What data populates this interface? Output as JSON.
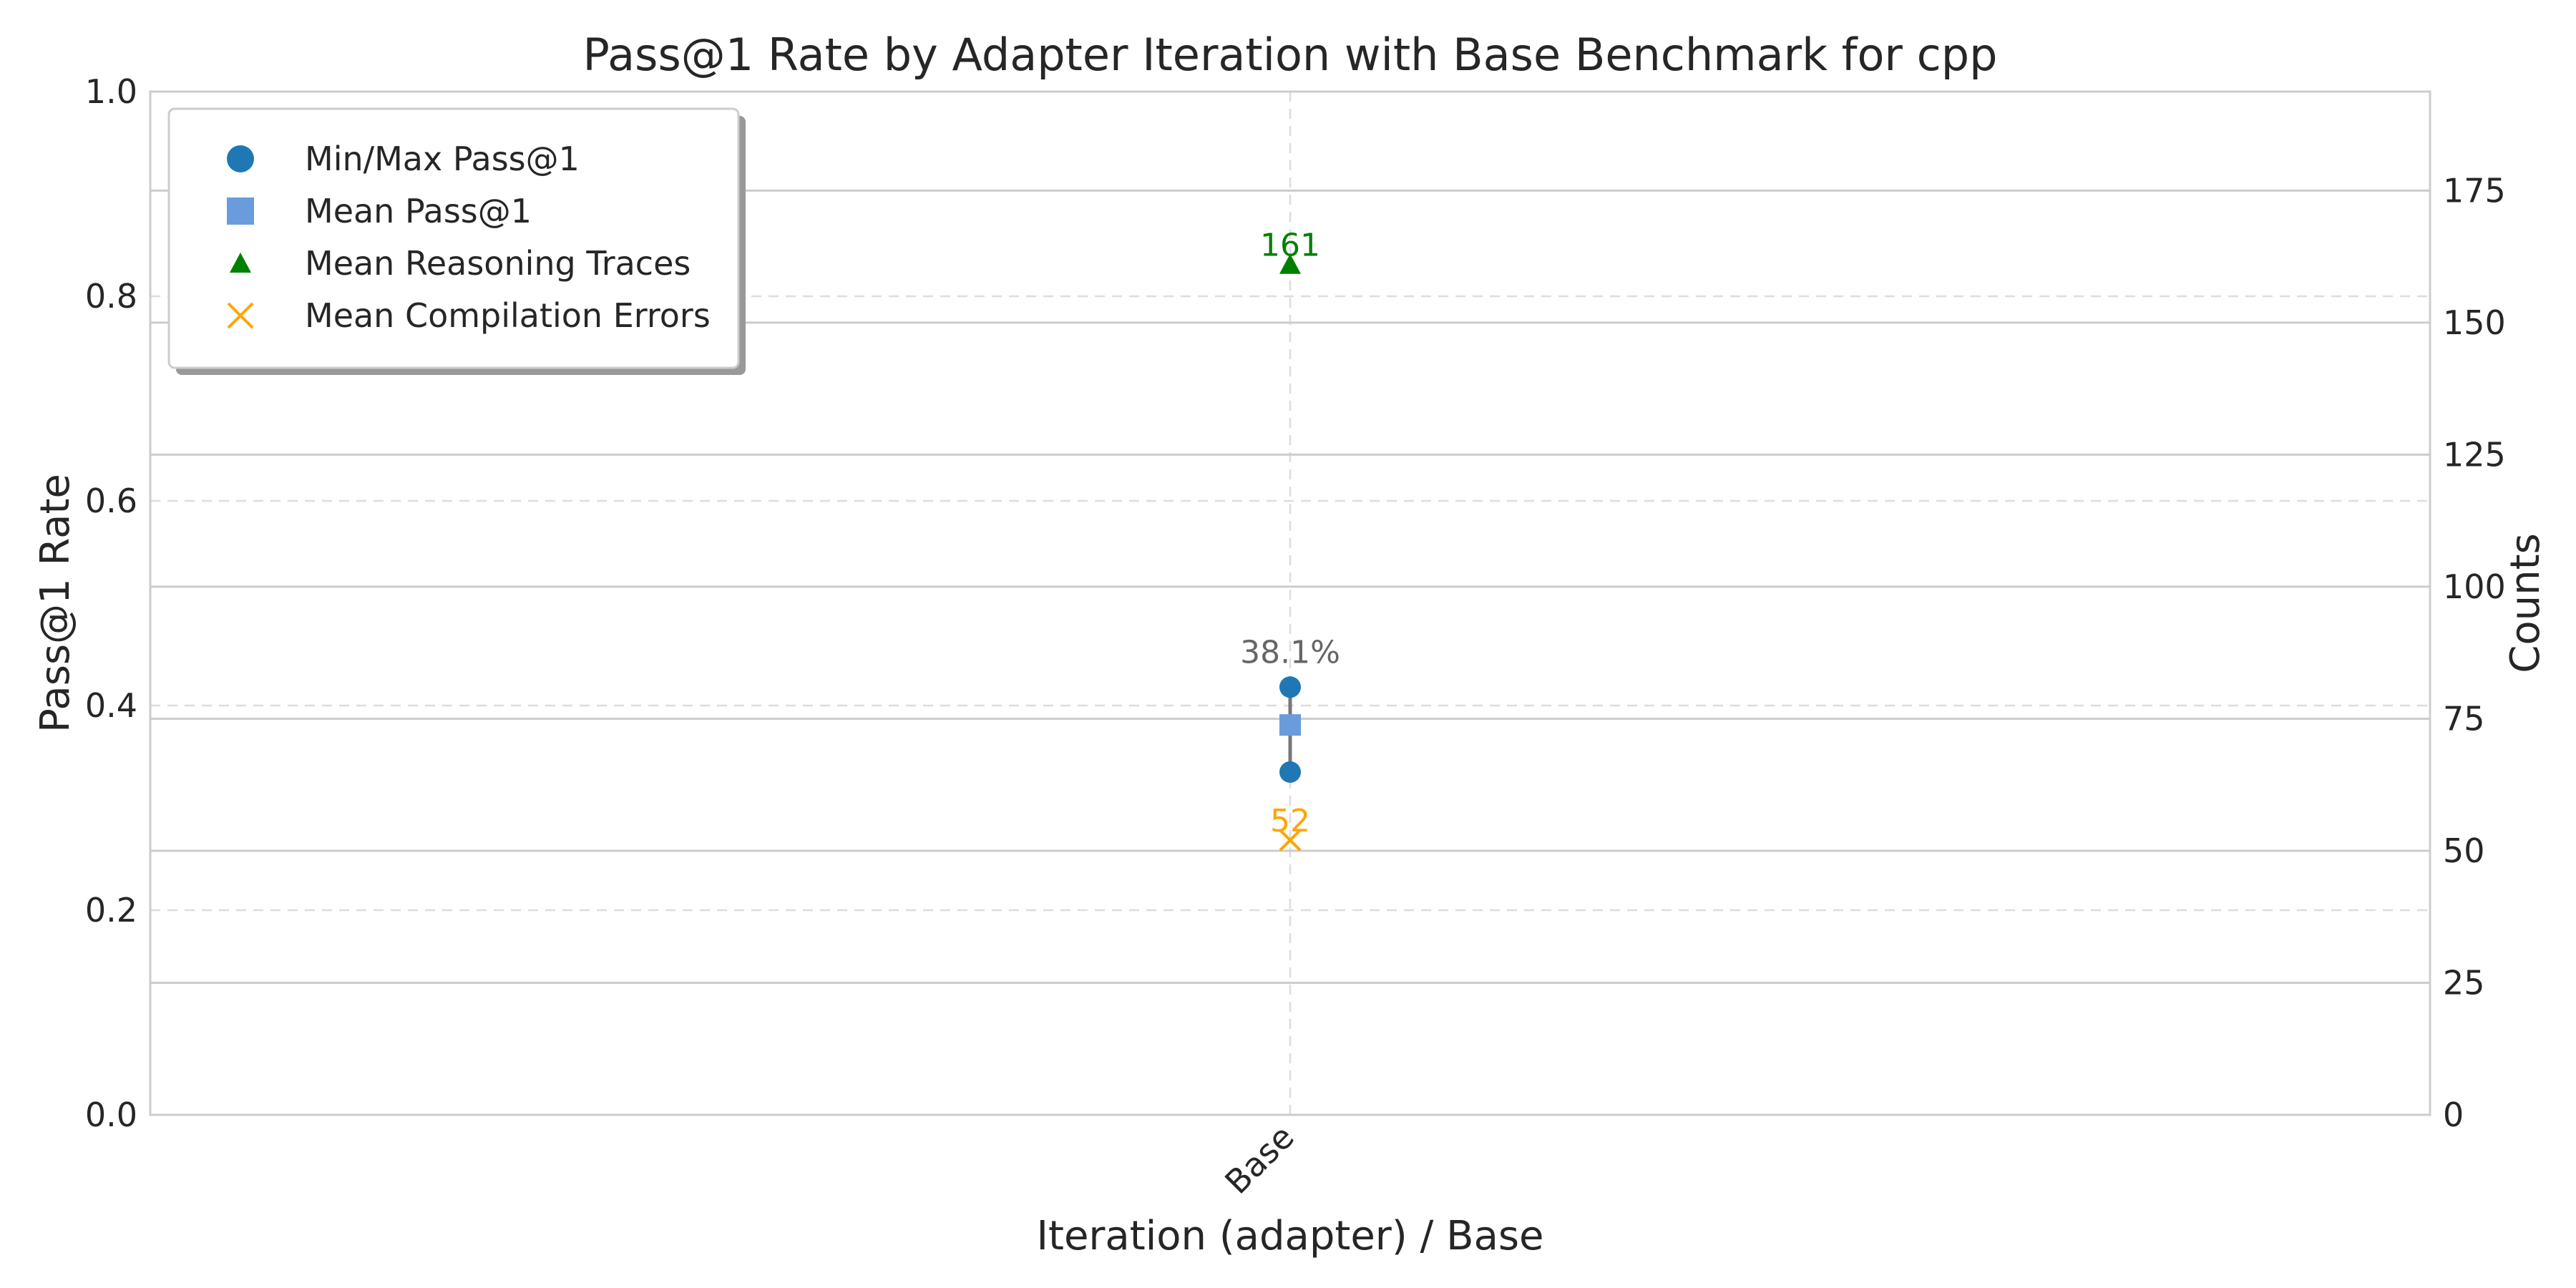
{
  "chart_data": {
    "type": "scatter",
    "title": "Pass@1 Rate by Adapter Iteration with Base Benchmark for cpp",
    "xlabel": "Iteration (adapter) / Base",
    "ylabel": "Pass@1 Rate",
    "y2label": "Counts",
    "categories": [
      "Base"
    ],
    "ylim": [
      0.0,
      1.0
    ],
    "y2lim": [
      0,
      193.75
    ],
    "yticks": [
      "0.0",
      "0.2",
      "0.4",
      "0.6",
      "0.8",
      "1.0"
    ],
    "y2ticks": [
      "0",
      "25",
      "50",
      "75",
      "100",
      "125",
      "150",
      "175"
    ],
    "grid": true,
    "legend_position": "upper-left",
    "series": [
      {
        "name": "Min/Max Pass@1",
        "axis": "left",
        "marker": "circle",
        "color": "#1f77b4",
        "min": [
          0.335
        ],
        "max": [
          0.418
        ]
      },
      {
        "name": "Mean Pass@1",
        "axis": "left",
        "marker": "square",
        "color": "#6a9bdc",
        "values": [
          0.381
        ],
        "labels": [
          "38.1%"
        ]
      },
      {
        "name": "Mean Reasoning Traces",
        "axis": "right",
        "marker": "triangle",
        "color": "#008000",
        "values": [
          161
        ],
        "labels": [
          "161"
        ]
      },
      {
        "name": "Mean Compilation Errors",
        "axis": "right",
        "marker": "x",
        "color": "#ffa500",
        "values": [
          52
        ],
        "labels": [
          "52"
        ]
      }
    ]
  }
}
